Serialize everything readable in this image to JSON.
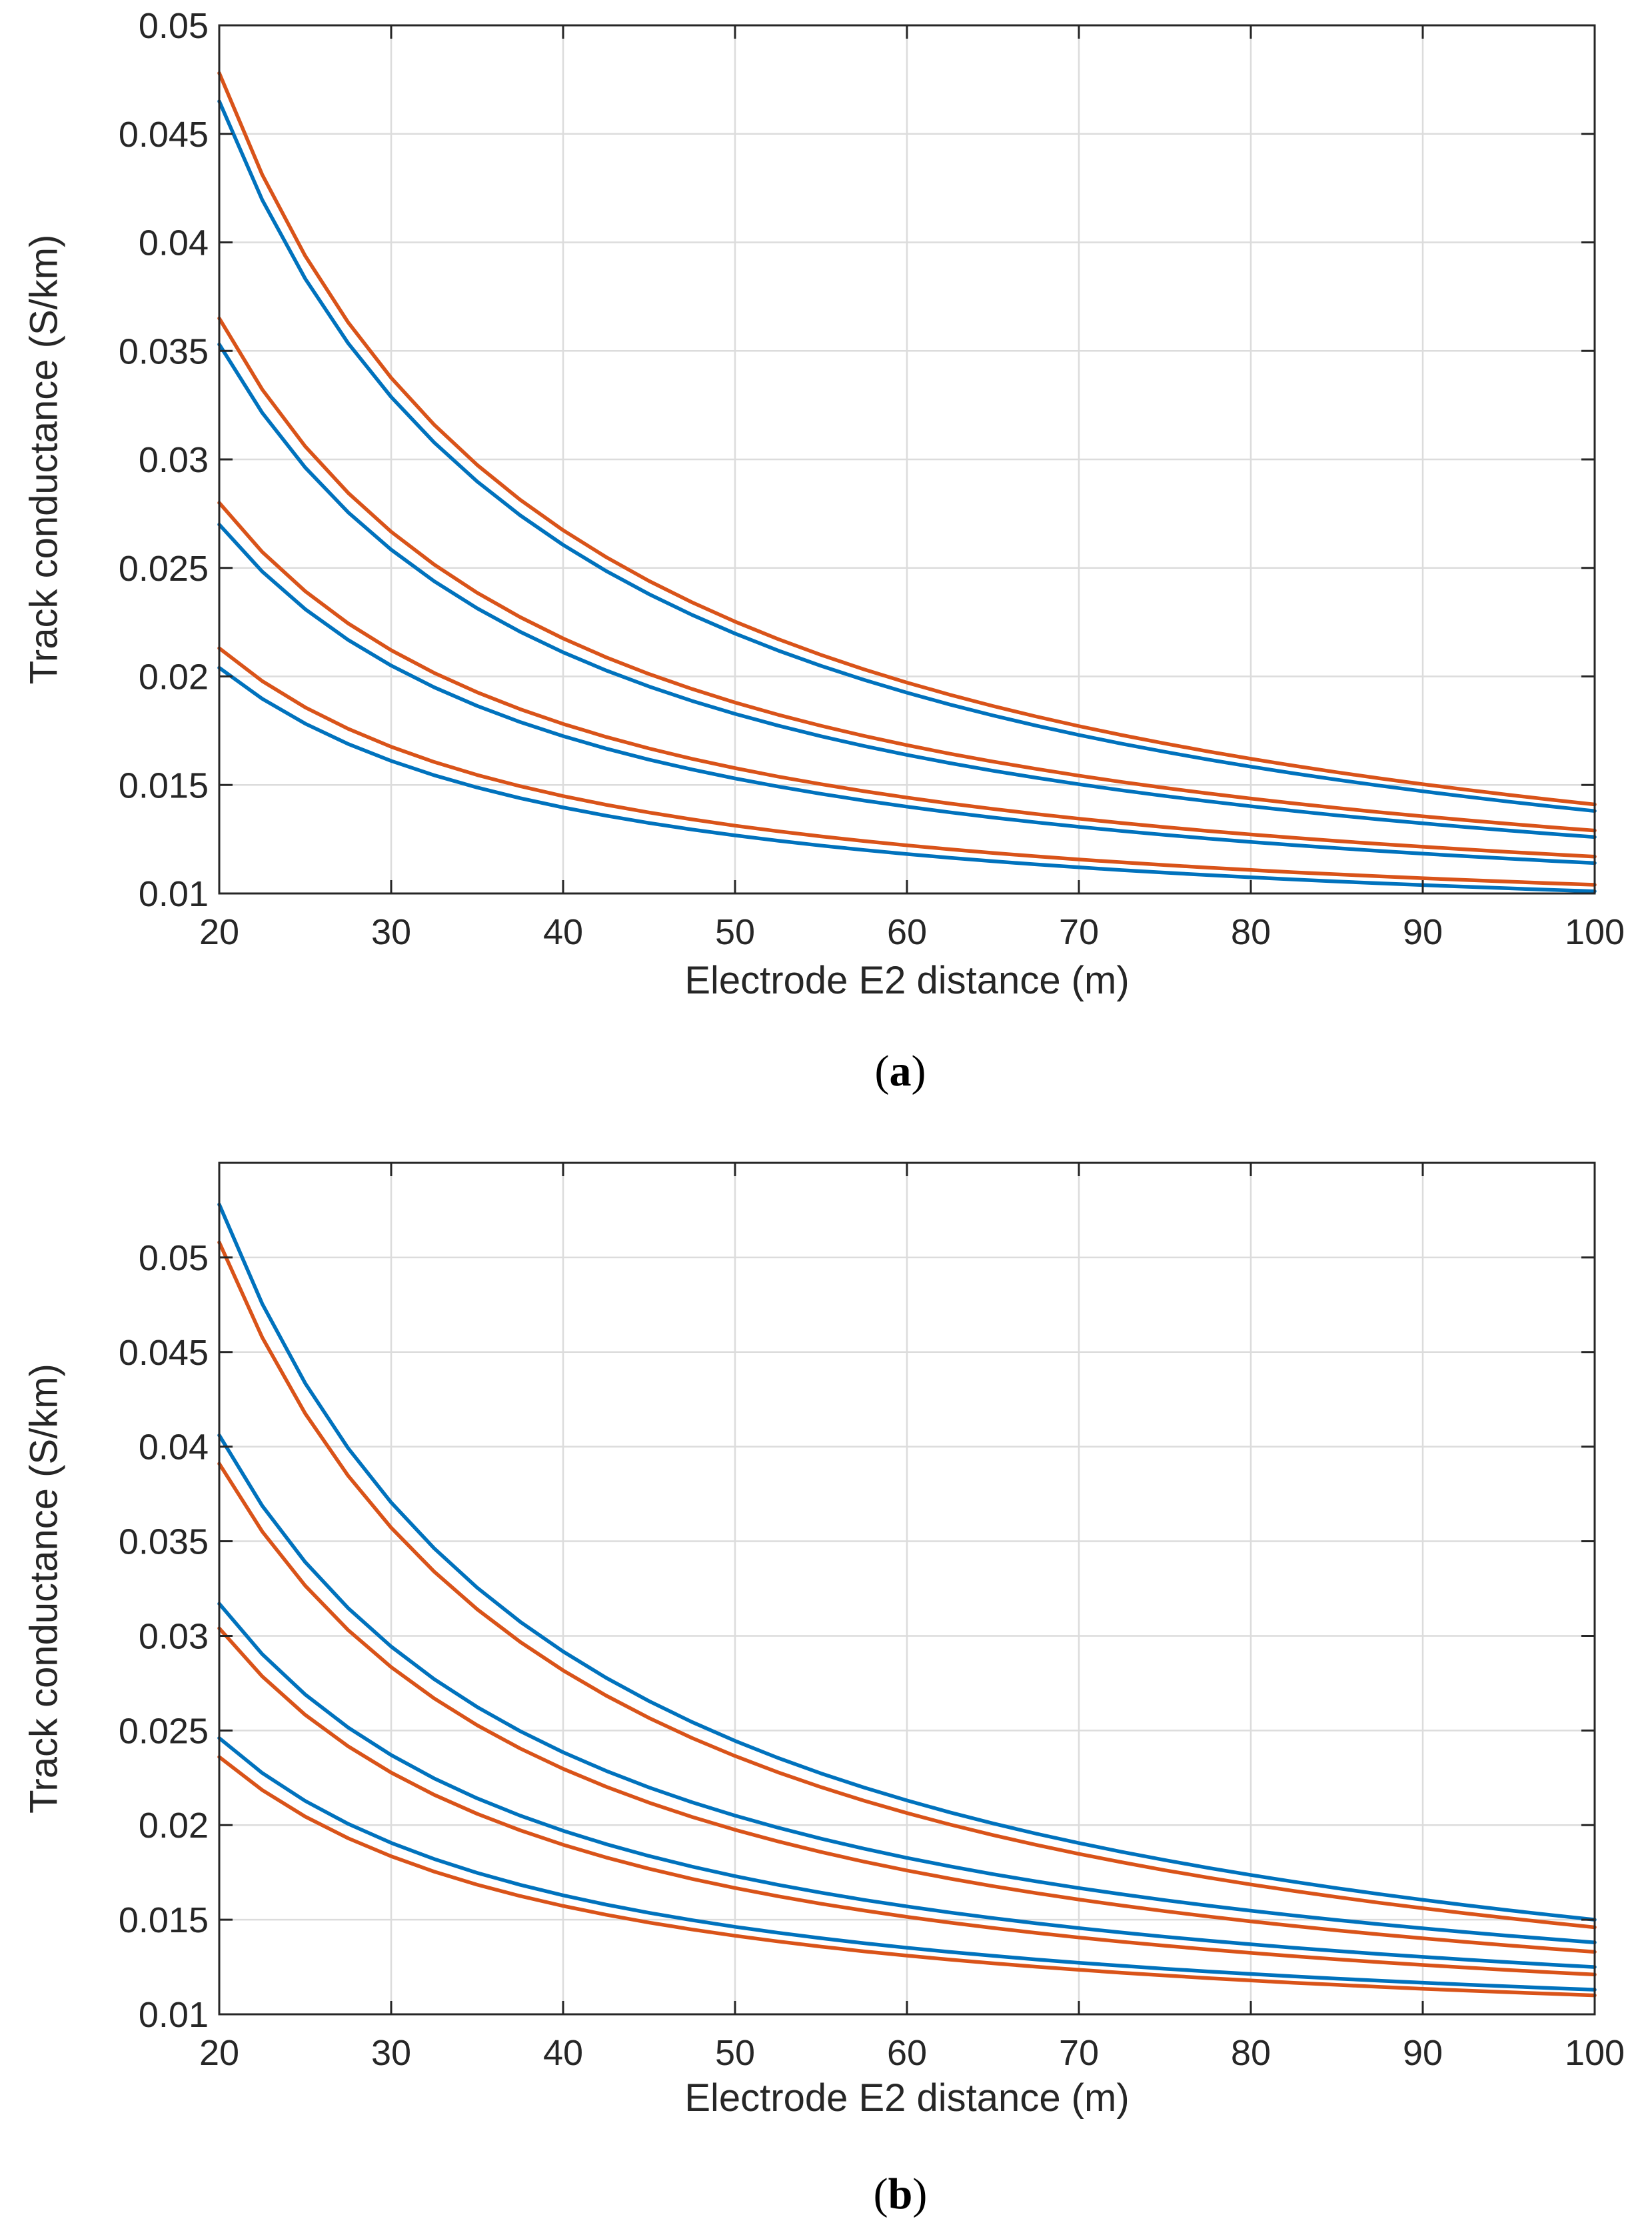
{
  "chart_data": [
    {
      "type": "line",
      "panel": "a",
      "caption_letter": "a",
      "caption": "(a)",
      "xlabel": "Electrode E2 distance (m)",
      "ylabel": "Track conductance (S/km)",
      "xlim": [
        20,
        100
      ],
      "ylim": [
        0.01,
        0.05
      ],
      "xticks": [
        20,
        30,
        40,
        50,
        60,
        70,
        80,
        90,
        100
      ],
      "xtick_labels": [
        "20",
        "30",
        "40",
        "50",
        "60",
        "70",
        "80",
        "90",
        "100"
      ],
      "yticks": [
        0.01,
        0.015,
        0.02,
        0.025,
        0.03,
        0.035,
        0.04,
        0.045,
        0.05
      ],
      "ytick_labels": [
        "0.01",
        "0.015",
        "0.02",
        "0.025",
        "0.03",
        "0.035",
        "0.04",
        "0.045",
        "0.05"
      ],
      "grid": true,
      "colors": {
        "blue": "#0072BD",
        "orange": "#D95319"
      },
      "series": [
        {
          "name": "orange-1",
          "color": "orange",
          "start": 0.0478,
          "end": 0.0141
        },
        {
          "name": "blue-1",
          "color": "blue",
          "start": 0.0465,
          "end": 0.0138
        },
        {
          "name": "orange-2",
          "color": "orange",
          "start": 0.0365,
          "end": 0.0129
        },
        {
          "name": "blue-2",
          "color": "blue",
          "start": 0.0353,
          "end": 0.0126
        },
        {
          "name": "orange-3",
          "color": "orange",
          "start": 0.028,
          "end": 0.0117
        },
        {
          "name": "blue-3",
          "color": "blue",
          "start": 0.027,
          "end": 0.0114
        },
        {
          "name": "orange-4",
          "color": "orange",
          "start": 0.0213,
          "end": 0.0104
        },
        {
          "name": "blue-4",
          "color": "blue",
          "start": 0.0204,
          "end": 0.0101
        }
      ]
    },
    {
      "type": "line",
      "panel": "b",
      "caption_letter": "b",
      "caption": "(b)",
      "xlabel": "Electrode E2 distance (m)",
      "ylabel": "Track conductance (S/km)",
      "xlim": [
        20,
        100
      ],
      "ylim": [
        0.01,
        0.055
      ],
      "xticks": [
        20,
        30,
        40,
        50,
        60,
        70,
        80,
        90,
        100
      ],
      "xtick_labels": [
        "20",
        "30",
        "40",
        "50",
        "60",
        "70",
        "80",
        "90",
        "100"
      ],
      "yticks": [
        0.01,
        0.015,
        0.02,
        0.025,
        0.03,
        0.035,
        0.04,
        0.045,
        0.05
      ],
      "ytick_labels": [
        "0.01",
        "0.015",
        "0.02",
        "0.025",
        "0.03",
        "0.035",
        "0.04",
        "0.045",
        "0.05"
      ],
      "grid": true,
      "colors": {
        "blue": "#0072BD",
        "orange": "#D95319"
      },
      "series": [
        {
          "name": "blue-1",
          "color": "blue",
          "start": 0.0528,
          "end": 0.015
        },
        {
          "name": "orange-1",
          "color": "orange",
          "start": 0.0508,
          "end": 0.0146
        },
        {
          "name": "blue-2",
          "color": "blue",
          "start": 0.0406,
          "end": 0.0138
        },
        {
          "name": "orange-2",
          "color": "orange",
          "start": 0.0391,
          "end": 0.0133
        },
        {
          "name": "blue-3",
          "color": "blue",
          "start": 0.0317,
          "end": 0.0125
        },
        {
          "name": "orange-3",
          "color": "orange",
          "start": 0.0304,
          "end": 0.0121
        },
        {
          "name": "blue-4",
          "color": "blue",
          "start": 0.0246,
          "end": 0.0113
        },
        {
          "name": "orange-4",
          "color": "orange",
          "start": 0.0236,
          "end": 0.011
        }
      ]
    }
  ]
}
